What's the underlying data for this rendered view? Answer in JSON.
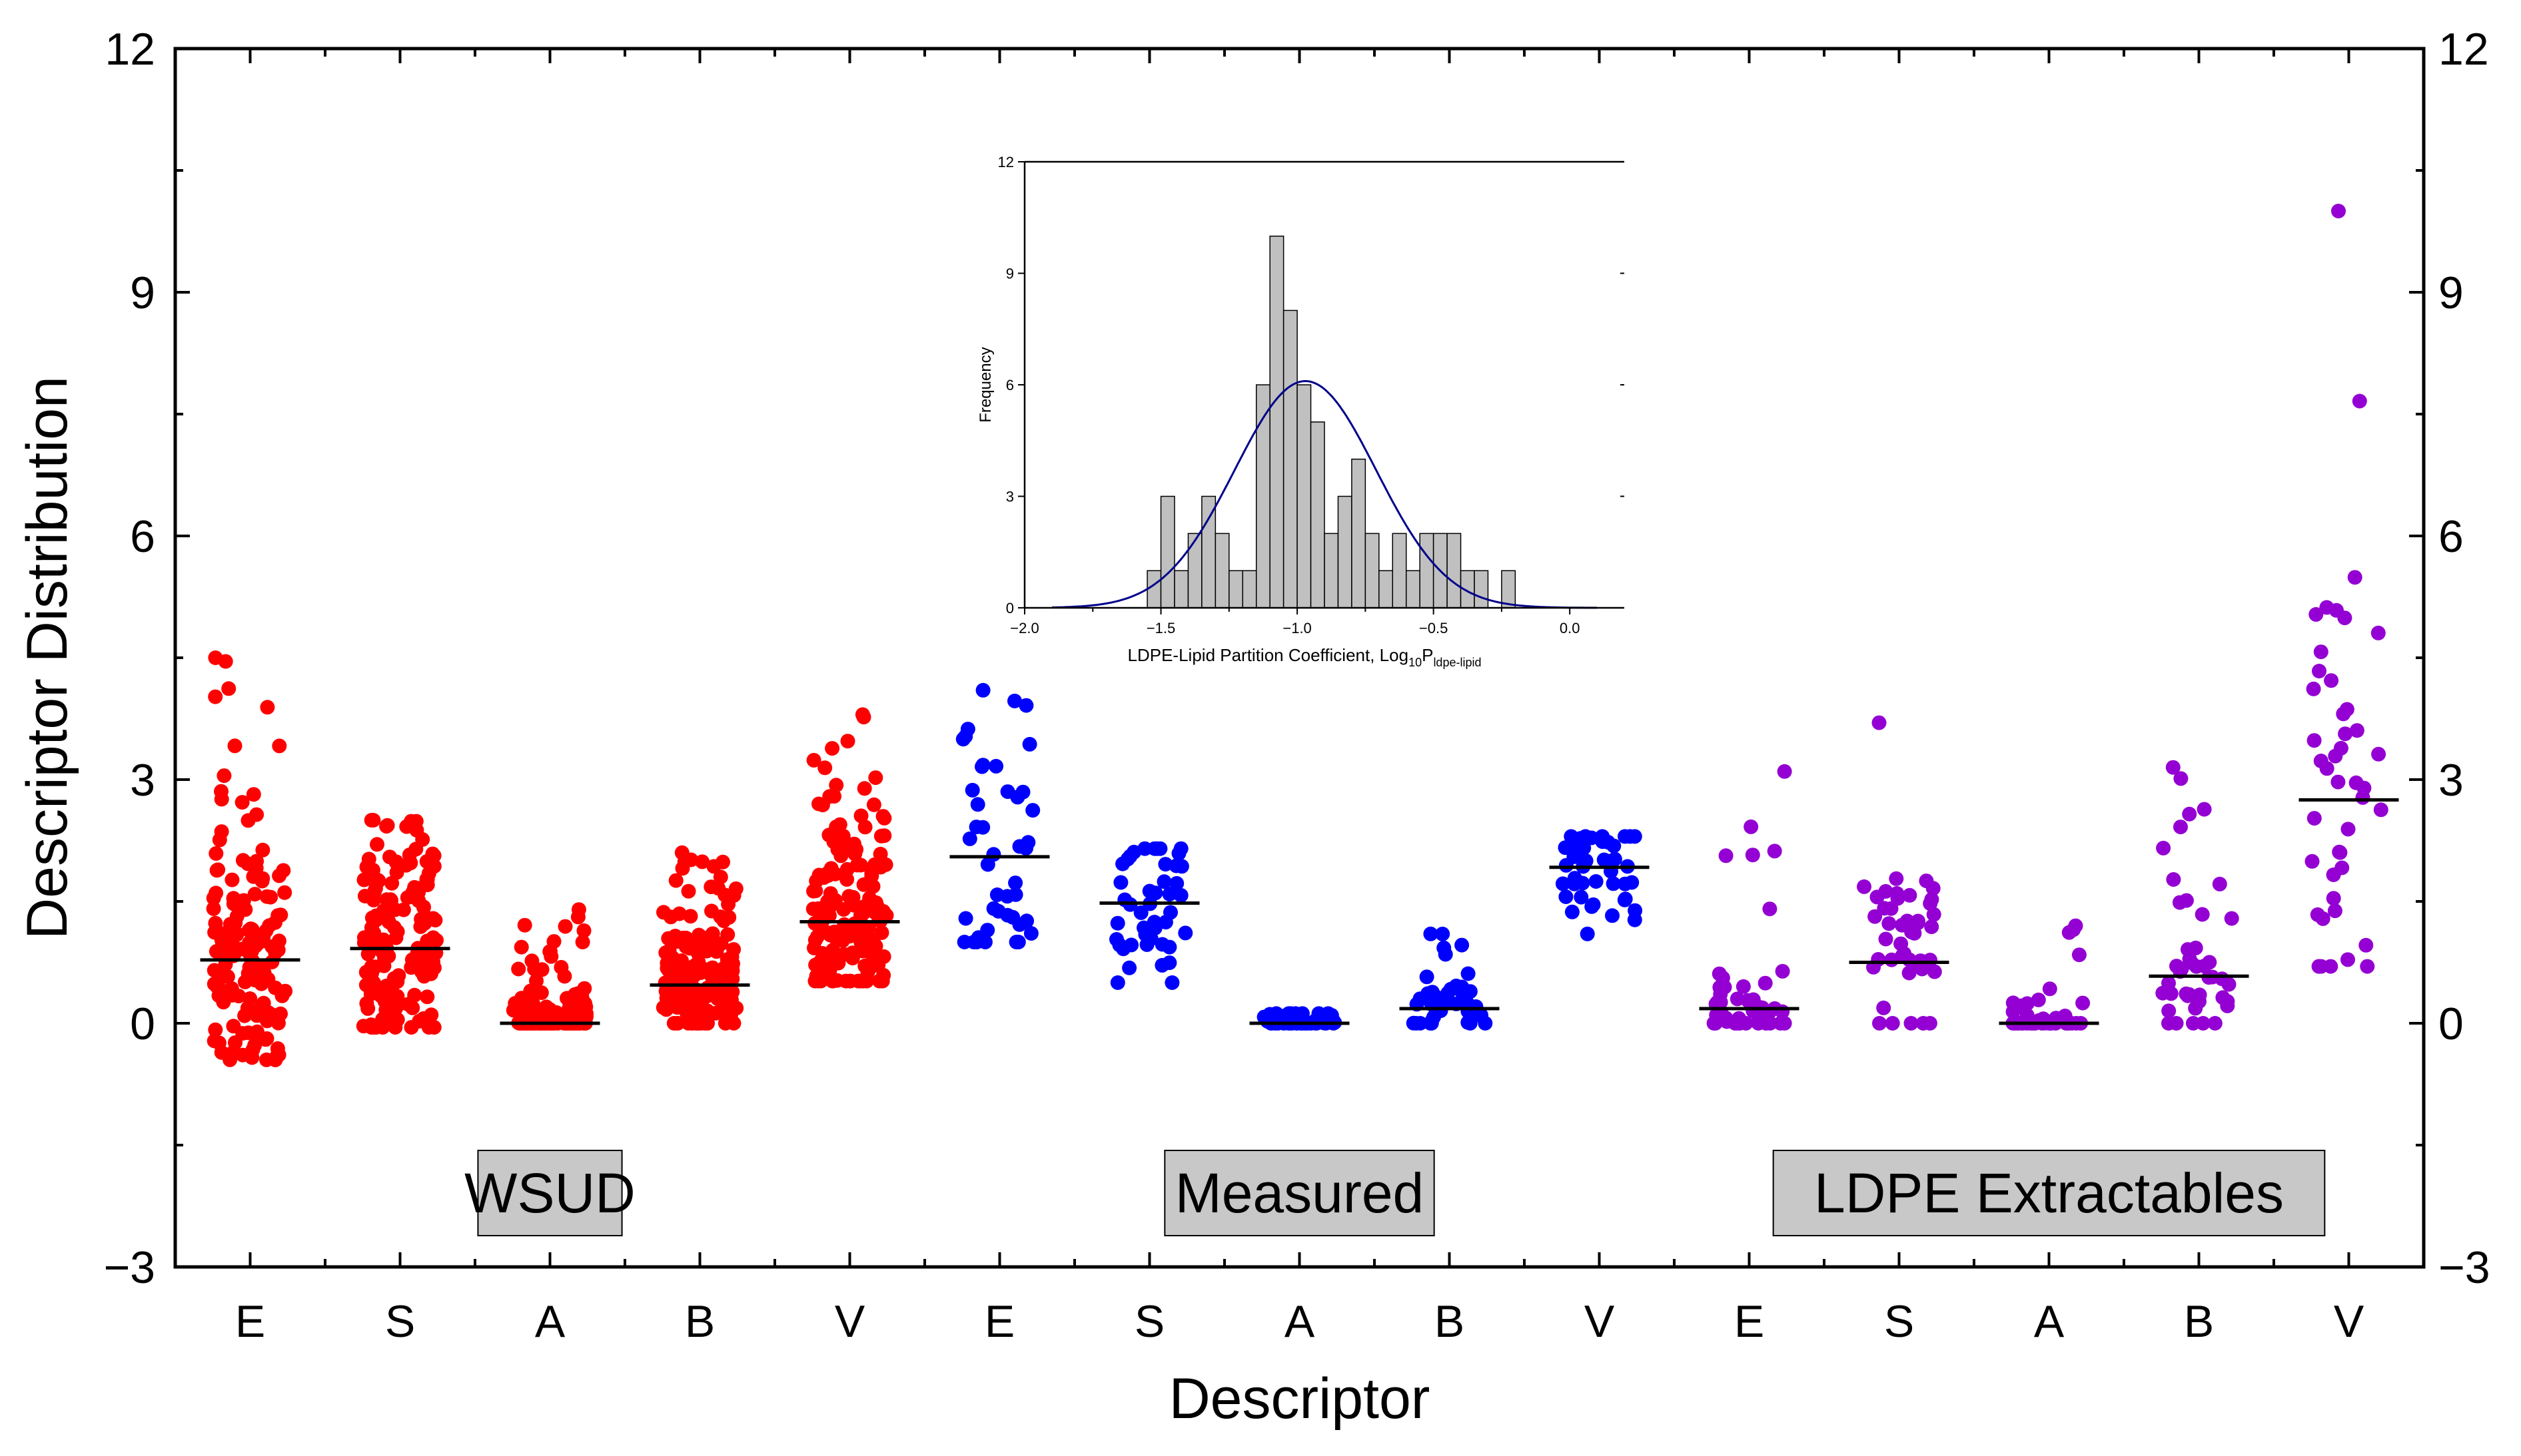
{
  "chart_data": [
    {
      "id": "main",
      "type": "scatter",
      "subtype": "jitter-strip with mean lines",
      "xlabel": "Descriptor",
      "ylabel": "Descriptor Distribution",
      "ylim": [
        -3,
        12
      ],
      "yticks": [
        -3,
        0,
        3,
        6,
        9,
        12
      ],
      "right_axis_ticks": true,
      "categories": [
        "E",
        "S",
        "A",
        "B",
        "V",
        "E",
        "S",
        "A",
        "B",
        "V",
        "E",
        "S",
        "A",
        "B",
        "V"
      ],
      "group_labels": [
        {
          "label": "WSUD",
          "from": 0,
          "to": 4
        },
        {
          "label": "Measured",
          "from": 5,
          "to": 9
        },
        {
          "label": "LDPE Extractables",
          "from": 10,
          "to": 14
        }
      ],
      "series": [
        {
          "name": "WSUD",
          "color": "#ff0000",
          "n": 150,
          "category_index": [
            0,
            1,
            2,
            3,
            4
          ],
          "means": [
            0.78,
            0.92,
            0.0,
            0.47,
            1.25
          ],
          "min": [
            -0.45,
            -0.05,
            0.0,
            0.0,
            0.52
          ],
          "max": [
            4.5,
            2.5,
            1.4,
            2.1,
            3.8
          ]
        },
        {
          "name": "Measured",
          "color": "#0000ff",
          "n": 45,
          "category_index": [
            5,
            6,
            7,
            8,
            9
          ],
          "means": [
            2.05,
            1.48,
            0.0,
            0.18,
            1.92
          ],
          "min": [
            1.0,
            0.5,
            0.0,
            0.0,
            1.1
          ],
          "max": [
            4.1,
            2.15,
            0.12,
            1.1,
            2.3
          ]
        },
        {
          "name": "LDPE Extractables",
          "color": "#9400d3",
          "n": 45,
          "category_index": [
            10,
            11,
            12,
            13,
            14
          ],
          "means": [
            0.18,
            0.75,
            0.0,
            0.58,
            2.75
          ],
          "min": [
            0.0,
            0.0,
            0.0,
            0.0,
            0.7
          ],
          "max": [
            3.1,
            3.7,
            1.2,
            3.15,
            10.0
          ]
        }
      ]
    },
    {
      "id": "inset",
      "type": "histogram",
      "xlabel": "LDPE-Lipid Partition Coefficient, Log",
      "xlabel_sub": "10",
      "xlabel_tail": "P",
      "xlabel_tail_sub": "ldpe-lipid",
      "ylabel": "Frequency",
      "xlim": [
        -2.0,
        0.2
      ],
      "ylim": [
        0,
        12
      ],
      "xticks": [
        "-2.0",
        "-1.5",
        "-1.0",
        "-0.5",
        "0.0"
      ],
      "xtick_values": [
        -2.0,
        -1.5,
        -1.0,
        -0.5,
        0.0
      ],
      "yticks": [
        0,
        3,
        6,
        9,
        12
      ],
      "bin_width": 0.05,
      "bins": [
        {
          "start": -1.55,
          "count": 1
        },
        {
          "start": -1.5,
          "count": 3
        },
        {
          "start": -1.45,
          "count": 1
        },
        {
          "start": -1.4,
          "count": 2
        },
        {
          "start": -1.35,
          "count": 3
        },
        {
          "start": -1.3,
          "count": 2
        },
        {
          "start": -1.25,
          "count": 1
        },
        {
          "start": -1.2,
          "count": 1
        },
        {
          "start": -1.15,
          "count": 6
        },
        {
          "start": -1.1,
          "count": 10
        },
        {
          "start": -1.05,
          "count": 8
        },
        {
          "start": -1.0,
          "count": 6
        },
        {
          "start": -0.95,
          "count": 5
        },
        {
          "start": -0.9,
          "count": 2
        },
        {
          "start": -0.85,
          "count": 3
        },
        {
          "start": -0.8,
          "count": 4
        },
        {
          "start": -0.75,
          "count": 2
        },
        {
          "start": -0.7,
          "count": 1
        },
        {
          "start": -0.65,
          "count": 2
        },
        {
          "start": -0.6,
          "count": 1
        },
        {
          "start": -0.55,
          "count": 2
        },
        {
          "start": -0.5,
          "count": 2
        },
        {
          "start": -0.45,
          "count": 2
        },
        {
          "start": -0.4,
          "count": 1
        },
        {
          "start": -0.35,
          "count": 1
        },
        {
          "start": -0.3,
          "count": 0
        },
        {
          "start": -0.25,
          "count": 1
        }
      ],
      "normal_fit": {
        "mean": -0.97,
        "sd": 0.26,
        "peak": 6.1,
        "color": "#00008b"
      }
    }
  ]
}
